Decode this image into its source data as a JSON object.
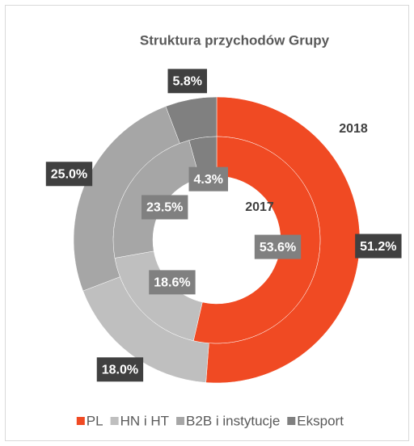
{
  "chart_data": {
    "type": "donut",
    "title": "Struktura przychodów Grupy",
    "categories": [
      "PL",
      "HN i HT",
      "B2B i instytucje",
      "Eksport"
    ],
    "colors": [
      "#f04a23",
      "#bfbfbf",
      "#a6a6a6",
      "#808080"
    ],
    "series": [
      {
        "name": "2018",
        "values": [
          51.2,
          18.0,
          25.0,
          5.8
        ],
        "value_labels": [
          "51.2%",
          "18.0%",
          "25.0%",
          "5.8%"
        ]
      },
      {
        "name": "2017",
        "values": [
          53.6,
          18.6,
          23.5,
          4.3
        ],
        "value_labels": [
          "53.6%",
          "18.6%",
          "23.5%",
          "4.3%"
        ]
      }
    ],
    "legend": "bottom"
  }
}
